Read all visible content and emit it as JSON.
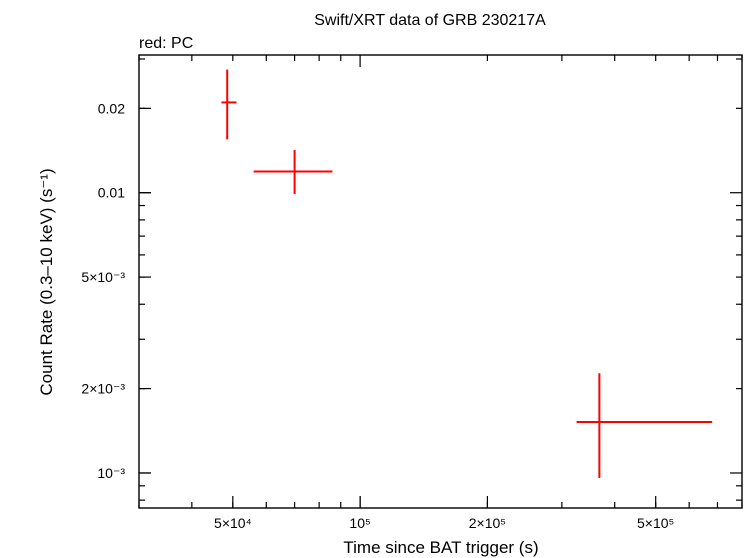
{
  "chart_data": {
    "type": "scatter",
    "title": "Swift/XRT data of GRB 230217A",
    "subtitle": "red: PC",
    "xlabel": "Time since BAT trigger (s)",
    "ylabel": "Count Rate (0.3–10 keV) (s⁻¹)",
    "xscale": "log",
    "yscale": "log",
    "xlim": [
      30000,
      800000
    ],
    "ylim": [
      0.00075,
      0.031
    ],
    "grid": false,
    "x_ticks": [
      {
        "value": 50000,
        "label": "5×10⁴"
      },
      {
        "value": 100000,
        "label": "10⁵"
      },
      {
        "value": 200000,
        "label": "2×10⁵"
      },
      {
        "value": 500000,
        "label": "5×10⁵"
      }
    ],
    "y_ticks": [
      {
        "value": 0.001,
        "label": "10⁻³"
      },
      {
        "value": 0.002,
        "label": "2×10⁻³"
      },
      {
        "value": 0.005,
        "label": "5×10⁻³"
      },
      {
        "value": 0.01,
        "label": "0.01"
      },
      {
        "value": 0.02,
        "label": "0.02"
      }
    ],
    "series": [
      {
        "name": "PC",
        "color": "#ff0000",
        "points": [
          {
            "x": 48500,
            "xlo": 47000,
            "xhi": 51000,
            "y": 0.021,
            "ylo": 0.0155,
            "yhi": 0.0275
          },
          {
            "x": 70000,
            "xlo": 56000,
            "xhi": 86000,
            "y": 0.0119,
            "ylo": 0.0099,
            "yhi": 0.0142
          },
          {
            "x": 368000,
            "xlo": 325000,
            "xhi": 680000,
            "y": 0.00152,
            "ylo": 0.00096,
            "yhi": 0.00227
          }
        ]
      }
    ]
  }
}
